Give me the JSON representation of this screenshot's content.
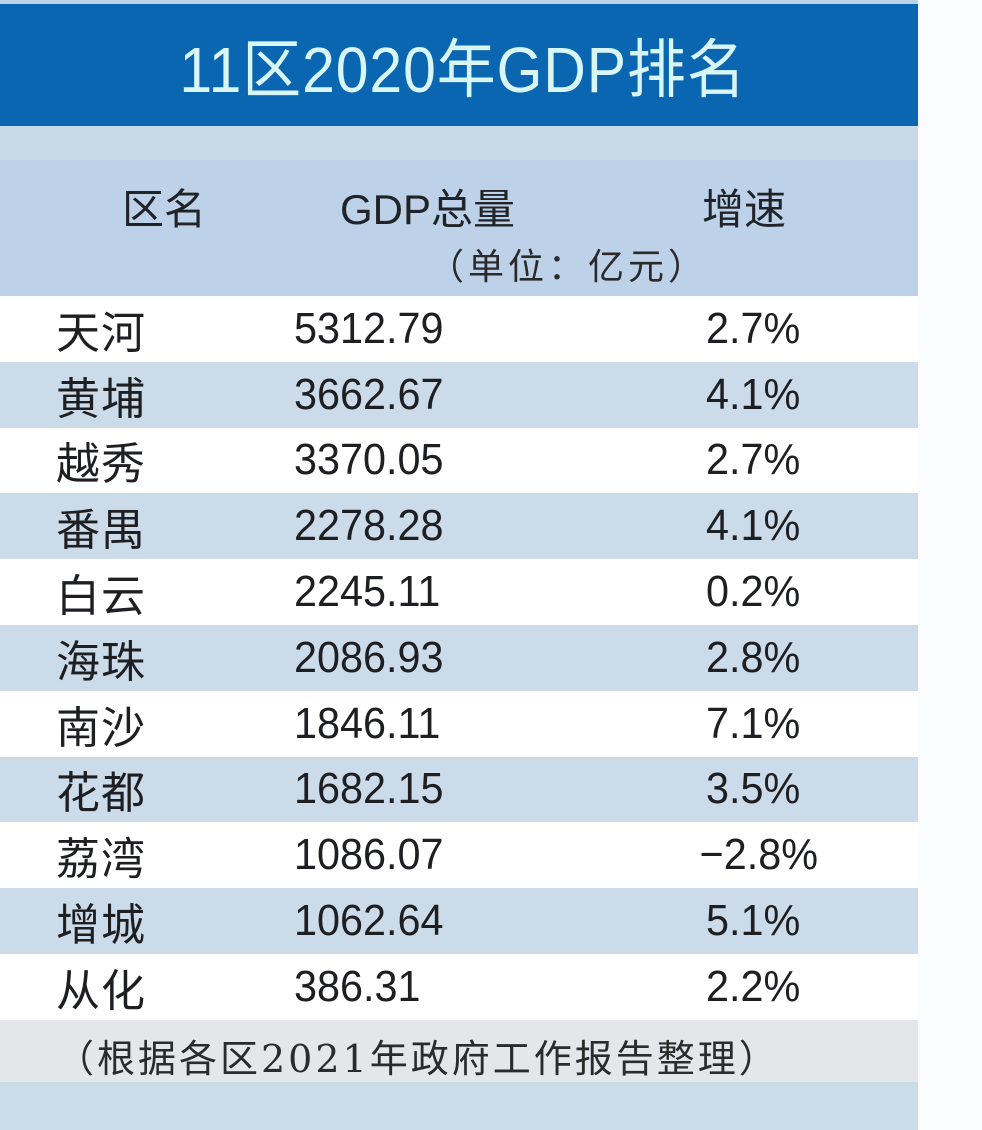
{
  "title": "11区2020年GDP排名",
  "header": {
    "district": "区名",
    "gdp": "GDP总量",
    "gdp_unit": "（单位：亿元）",
    "growth": "增速"
  },
  "rows": [
    {
      "district": "天河",
      "gdp": "5312.79",
      "growth": "2.7%"
    },
    {
      "district": "黄埔",
      "gdp": "3662.67",
      "growth": "4.1%"
    },
    {
      "district": "越秀",
      "gdp": "3370.05",
      "growth": "2.7%"
    },
    {
      "district": "番禺",
      "gdp": "2278.28",
      "growth": "4.1%"
    },
    {
      "district": "白云",
      "gdp": "2245.11",
      "growth": "0.2%"
    },
    {
      "district": "海珠",
      "gdp": "2086.93",
      "growth": "2.8%"
    },
    {
      "district": "南沙",
      "gdp": "1846.11",
      "growth": "7.1%"
    },
    {
      "district": "花都",
      "gdp": "1682.15",
      "growth": "3.5%"
    },
    {
      "district": "荔湾",
      "gdp": "1086.07",
      "growth": "−2.8%"
    },
    {
      "district": "增城",
      "gdp": "1062.64",
      "growth": "5.1%"
    },
    {
      "district": "从化",
      "gdp": "386.31",
      "growth": "2.2%"
    }
  ],
  "footnote": "（根据各区2021年政府工作报告整理）",
  "colors": {
    "title_bg": "#0b66b2",
    "title_text": "#d9f6f6",
    "header_bg": "#bdd1e9",
    "row_alt_bg": "#ccdbe9",
    "footnote_bg": "#e4e6e9"
  }
}
